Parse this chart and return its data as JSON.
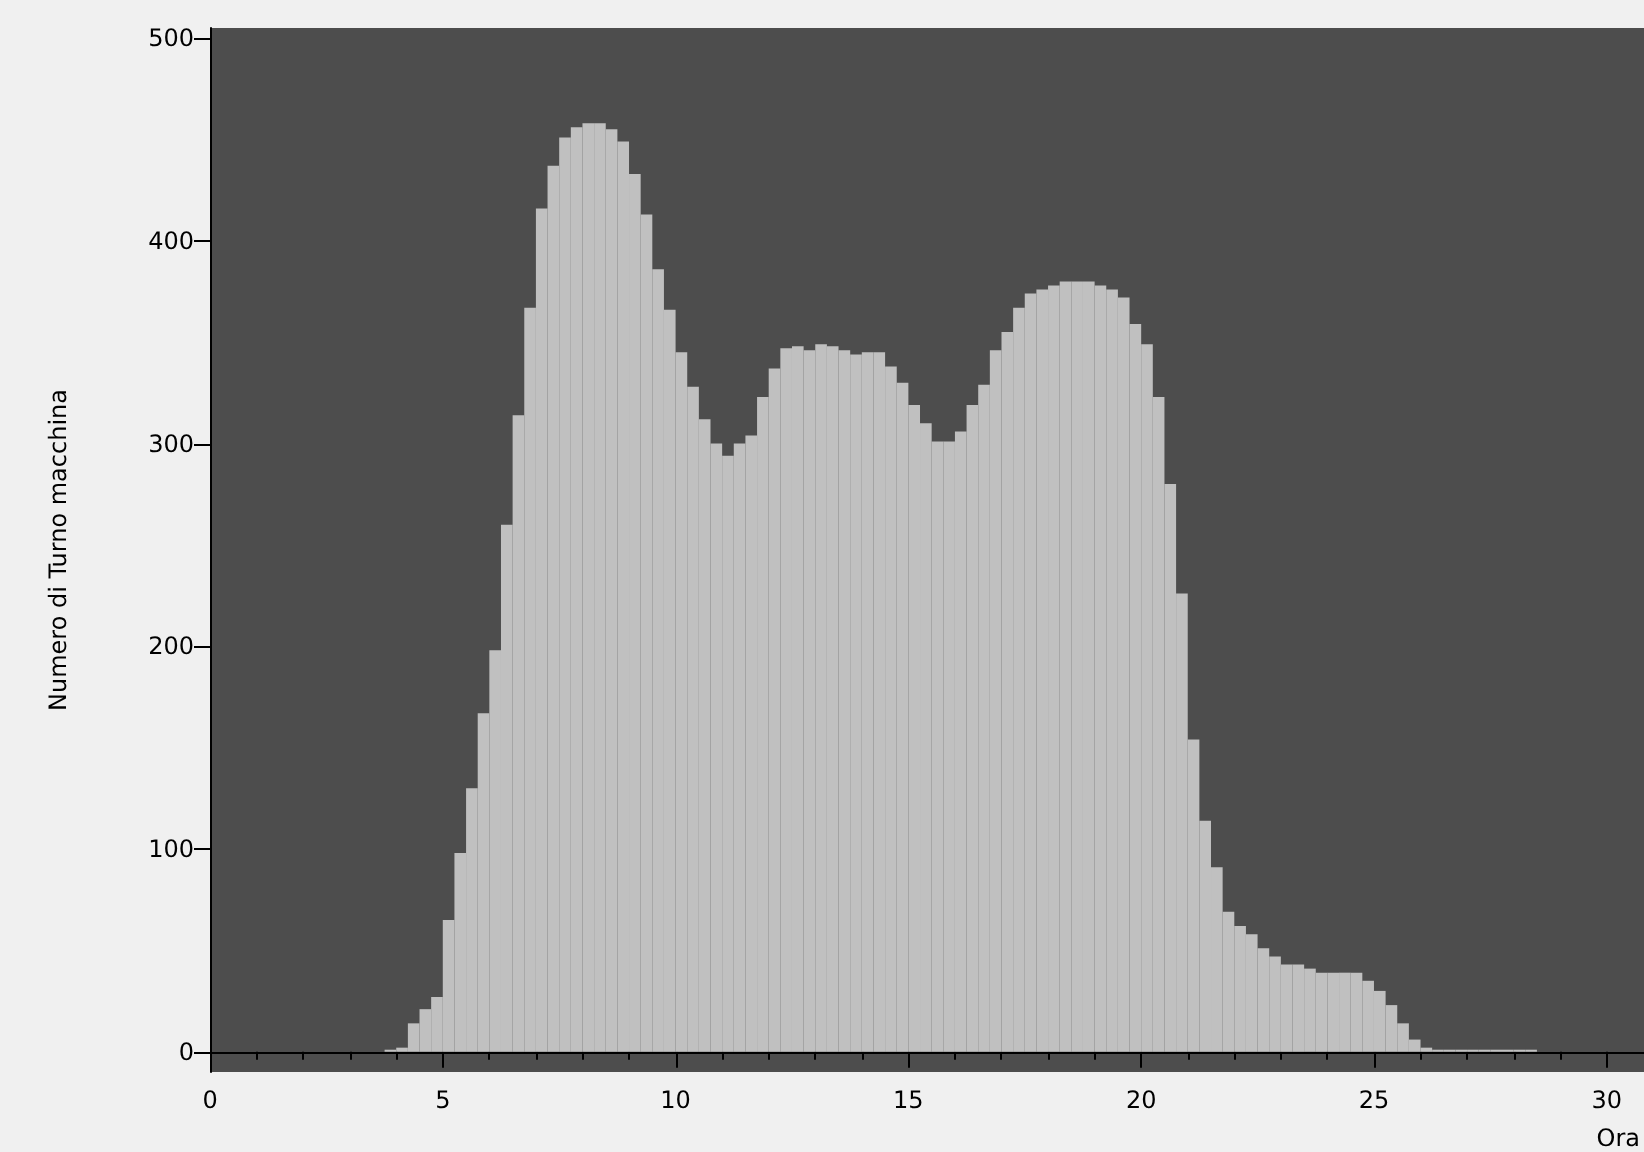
{
  "chart_data": {
    "type": "histogram",
    "xlabel": "Ora",
    "ylabel": "Numero di Turno macchina",
    "color": "#c0c0c0",
    "bins": [
      3.75,
      4,
      4.25,
      4.5,
      4.75,
      5,
      5.25,
      5.5,
      5.75,
      6,
      6.25,
      6.5,
      6.75,
      7,
      7.25,
      7.5,
      7.75,
      8,
      8.25,
      8.5,
      8.75,
      9,
      9.25,
      9.5,
      9.75,
      10,
      10.25,
      10.5,
      10.75,
      11,
      11.25,
      11.5,
      11.75,
      12,
      12.25,
      12.5,
      12.75,
      13,
      13.25,
      13.5,
      13.75,
      14,
      14.25,
      14.5,
      14.75,
      15,
      15.25,
      15.5,
      15.75,
      16,
      16.25,
      16.5,
      16.75,
      17,
      17.25,
      17.5,
      17.75,
      18,
      18.25,
      18.5,
      18.75,
      19,
      19.25,
      19.5,
      19.75,
      20,
      20.25,
      20.5,
      20.75,
      21,
      21.25,
      21.5,
      21.75,
      22,
      22.25,
      22.5,
      22.75,
      23,
      23.25,
      23.5,
      23.75,
      24,
      24.25,
      24.5,
      24.75,
      25,
      25.25,
      25.5,
      25.75,
      26,
      26.25,
      26.5,
      26.75,
      27,
      27.25,
      27.5,
      27.75,
      28,
      28.25,
      28.5
    ],
    "values": [
      1,
      2,
      14,
      21,
      27,
      65,
      98,
      130,
      167,
      198,
      260,
      314,
      367,
      416,
      437,
      451,
      456,
      458,
      458,
      455,
      449,
      433,
      413,
      386,
      366,
      345,
      328,
      312,
      300,
      294,
      300,
      304,
      323,
      337,
      347,
      348,
      346,
      349,
      348,
      346,
      344,
      345,
      345,
      338,
      330,
      319,
      310,
      301,
      301,
      306,
      319,
      329,
      346,
      355,
      367,
      374,
      376,
      378,
      380,
      380,
      380,
      378,
      376,
      372,
      359,
      349,
      323,
      280,
      226,
      154,
      114,
      91,
      69,
      62,
      58,
      51,
      47,
      43,
      43,
      41,
      39,
      39,
      39,
      39,
      35,
      30,
      23,
      14,
      6,
      2,
      1,
      1,
      1,
      1,
      1,
      1,
      1,
      1,
      1
    ],
    "xlim": [
      0,
      30.8
    ],
    "xticks": [
      0,
      5,
      10,
      15,
      20,
      25,
      30
    ],
    "ylim": [
      -10,
      505
    ],
    "yticks": [
      0,
      100,
      200,
      300,
      400,
      500
    ]
  }
}
